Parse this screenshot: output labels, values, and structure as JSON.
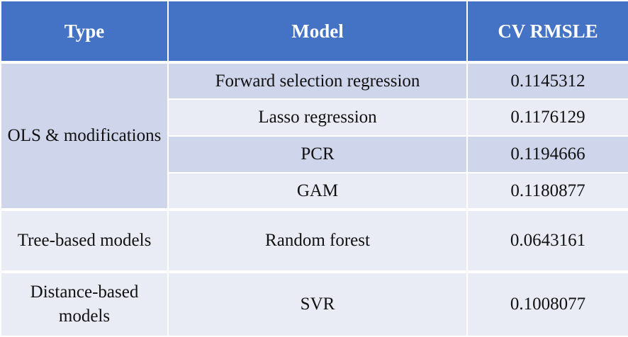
{
  "header": {
    "type": "Type",
    "model": "Model",
    "metric": "CV RMSLE"
  },
  "groups": [
    {
      "type": "OLS & modifications",
      "rows": [
        {
          "model": "Forward selection regression",
          "score": "0.1145312"
        },
        {
          "model": "Lasso regression",
          "score": "0.1176129"
        },
        {
          "model": "PCR",
          "score": "0.1194666"
        },
        {
          "model": "GAM",
          "score": "0.1180877"
        }
      ]
    },
    {
      "type": "Tree-based models",
      "rows": [
        {
          "model": "Random forest",
          "score": "0.0643161"
        }
      ]
    },
    {
      "type": "Distance-based models",
      "rows": [
        {
          "model": "SVR",
          "score": "0.1008077"
        }
      ]
    }
  ],
  "colors": {
    "header_bg": "#4472c4",
    "row_dark": "#cfd5ea",
    "row_light": "#e9ebf5"
  }
}
